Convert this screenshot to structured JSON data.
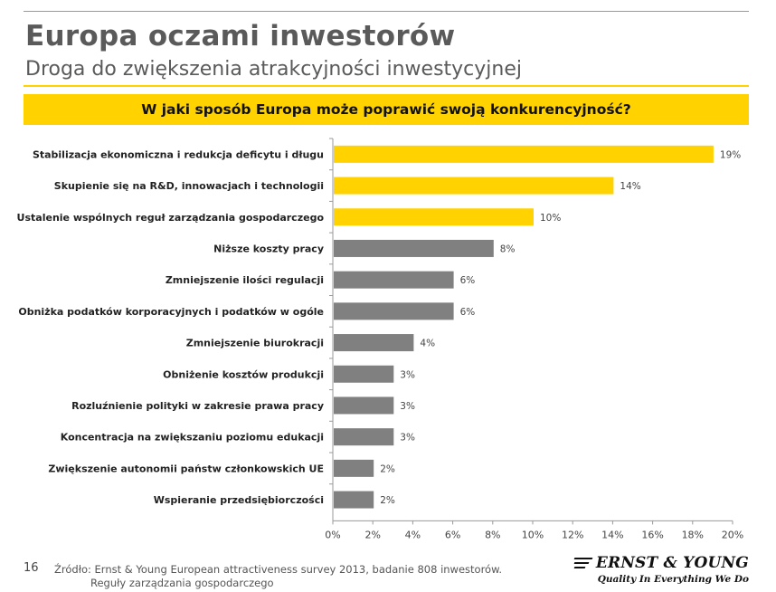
{
  "header": {
    "title": "Europa oczami inwestorów",
    "subtitle": "Droga do zwiększenia atrakcyjności inwestycyjnej"
  },
  "chart_data": {
    "type": "bar",
    "orientation": "horizontal",
    "title": "W jaki sposób Europa może poprawić swoją konkurencyjność?",
    "categories": [
      "Stabilizacja ekonomiczna i redukcja deficytu i długu",
      "Skupienie się na R&D, innowacjach i technologii",
      "Ustalenie wspólnych reguł zarządzania gospodarczego",
      "Niższe koszty pracy",
      "Zmniejszenie ilości regulacji",
      "Obniżka podatków korporacyjnych i podatków w ogóle",
      "Zmniejszenie biurokracji",
      "Obniżenie kosztów produkcji",
      "Rozluźnienie polityki w zakresie prawa pracy",
      "Koncentracja na zwiększaniu poziomu edukacji",
      "Zwiększenie autonomii państw członkowskich UE",
      "Wspieranie przedsiębiorczości"
    ],
    "values": [
      19,
      14,
      10,
      8,
      6,
      6,
      4,
      3,
      3,
      3,
      2,
      2
    ],
    "value_labels": [
      "19%",
      "14%",
      "10%",
      "8%",
      "6%",
      "6%",
      "4%",
      "3%",
      "3%",
      "3%",
      "2%",
      "2%"
    ],
    "highlight_count": 3,
    "colors": {
      "highlight": "#ffd200",
      "default": "#808080"
    },
    "xlim": [
      0,
      20
    ],
    "xticks": [
      0,
      2,
      4,
      6,
      8,
      10,
      12,
      14,
      16,
      18,
      20
    ],
    "xtick_labels": [
      "0%",
      "2%",
      "4%",
      "6%",
      "8%",
      "10%",
      "12%",
      "14%",
      "16%",
      "18%",
      "20%"
    ],
    "grid": false
  },
  "footer": {
    "page_number": "16",
    "source_line1": "Źródło: Ernst & Young European attractiveness survey 2013, badanie 808 inwestorów.",
    "source_line2": "Reguły zarządzania gospodarczego"
  },
  "logo": {
    "name": "ERNST & YOUNG",
    "tagline": "Quality In Everything We Do"
  }
}
